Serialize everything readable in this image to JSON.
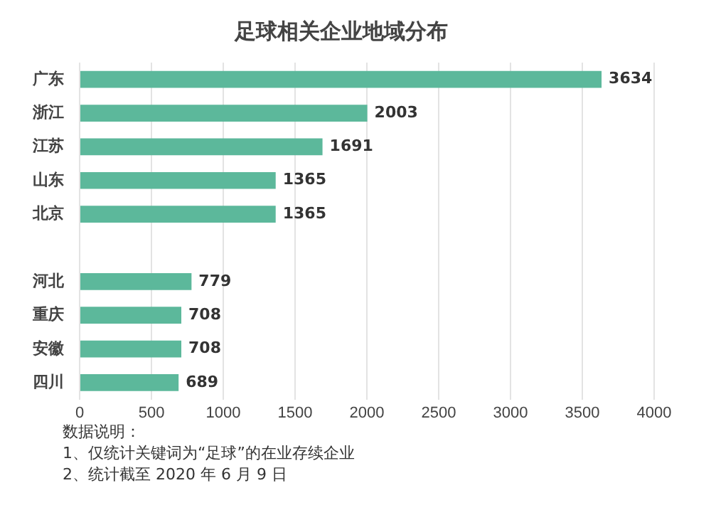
{
  "chart_data": {
    "type": "bar",
    "orientation": "horizontal",
    "title": "足球相关企业地域分布",
    "categories": [
      "广东",
      "浙江",
      "江苏",
      "山东",
      "北京",
      null,
      "河北",
      "重庆",
      "安徽",
      "四川"
    ],
    "values": [
      3634,
      2003,
      1691,
      1365,
      1365,
      null,
      779,
      708,
      708,
      689
    ],
    "color": "#5cb89b",
    "xlim": [
      0,
      4000
    ],
    "xticks": [
      0,
      500,
      1000,
      1500,
      2000,
      2500,
      3000,
      3500,
      4000
    ],
    "grid": "x",
    "data_labels": true,
    "legend": false,
    "annotations": [
      "数据说明：",
      "1、仅统计关键词为“足球”的在业存续企业",
      "2、统计截至 2020 年 6 月 9 日"
    ]
  }
}
